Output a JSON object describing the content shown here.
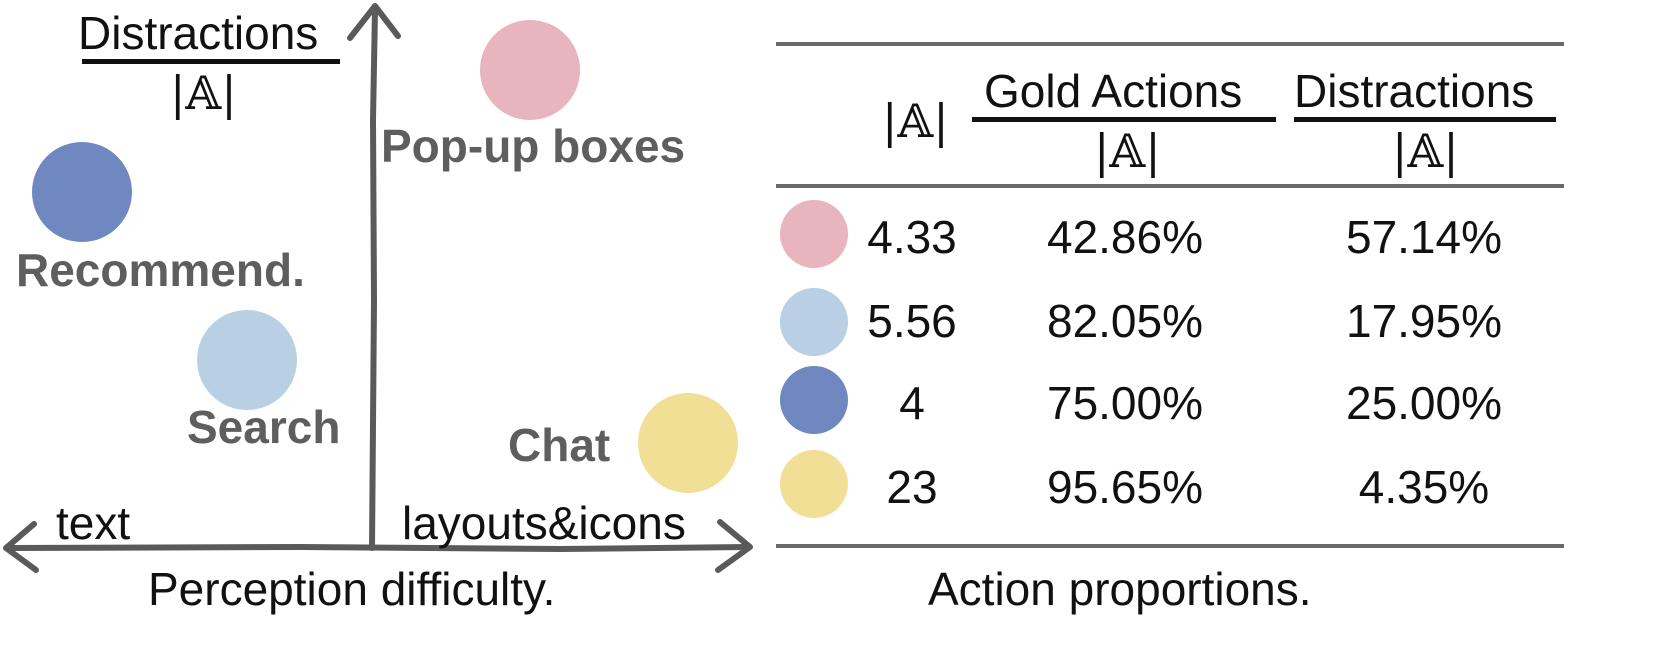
{
  "left_panel": {
    "y_axis_fraction": {
      "numerator": "Distractions",
      "denominator": "|𝔸|"
    },
    "x_axis_left_label": "text",
    "x_axis_right_label": "layouts&icons",
    "caption": "Perception difficulty.",
    "points": [
      {
        "label": "Pop-up boxes",
        "color": "#e8b4bd"
      },
      {
        "label": "Recommend.",
        "color": "#6f88c0"
      },
      {
        "label": "Search",
        "color": "#b9cfe4"
      },
      {
        "label": "Chat",
        "color": "#f2df96"
      }
    ]
  },
  "right_panel": {
    "headers": {
      "col1": "|𝔸|",
      "col2_numerator": "Gold Actions",
      "col2_denominator": "|𝔸|",
      "col3_numerator": "Distractions",
      "col3_denominator": "|𝔸|"
    },
    "rows": [
      {
        "color": "#e8b4bd",
        "a": "4.33",
        "gold": "42.86%",
        "distract": "57.14%"
      },
      {
        "color": "#b9cfe4",
        "a": "5.56",
        "gold": "82.05%",
        "distract": "17.95%"
      },
      {
        "color": "#6f88c0",
        "a": "4",
        "gold": "75.00%",
        "distract": "25.00%"
      },
      {
        "color": "#f2df96",
        "a": "23",
        "gold": "95.65%",
        "distract": "4.35%"
      }
    ],
    "caption": "Action proportions."
  }
}
